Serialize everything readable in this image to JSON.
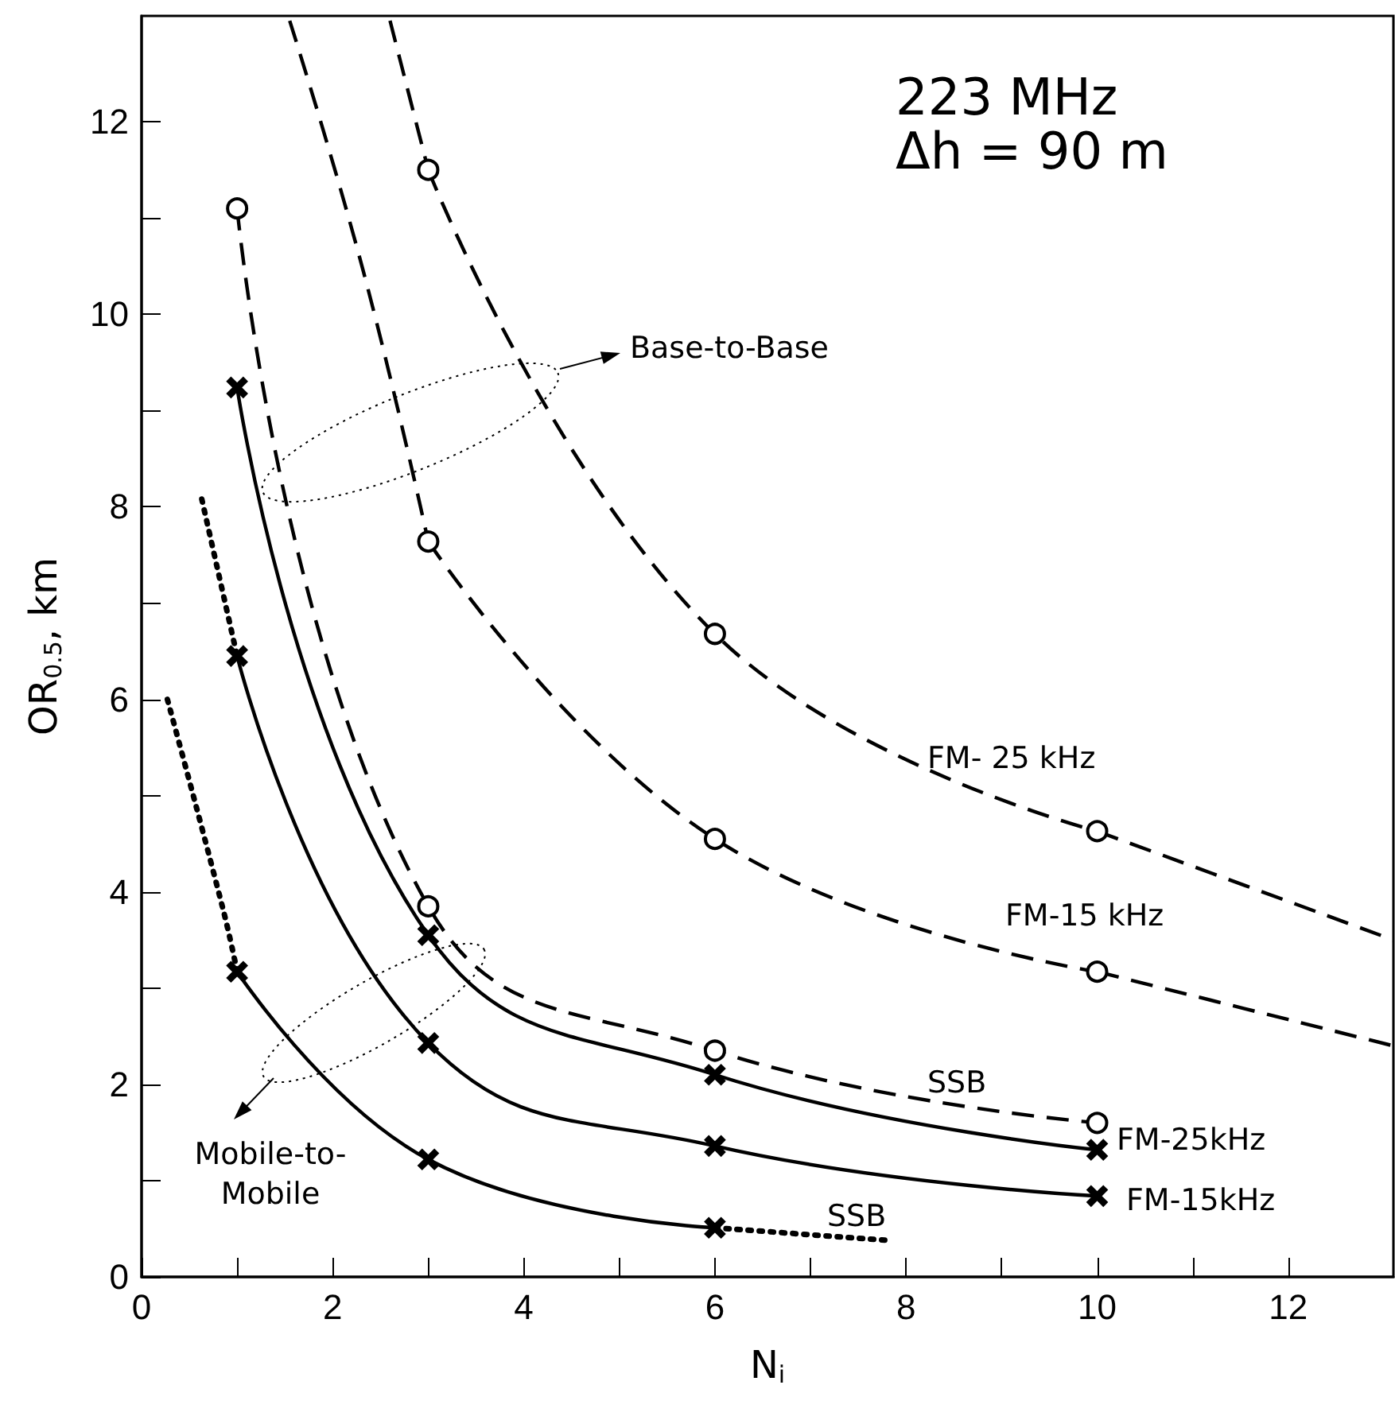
{
  "chart_data": {
    "type": "line",
    "title": "223 MHz",
    "subtitle": "Δh = 90 m",
    "xlabel": "N$_{i}$",
    "ylabel": "OR$_{0.5}$, km",
    "xlim": [
      0,
      13.1
    ],
    "ylim": [
      0,
      13.1
    ],
    "xticks": [
      0,
      {
        "value": 1,
        "label": null
      },
      2,
      {
        "value": 3,
        "label": null
      },
      4,
      {
        "value": 5,
        "label": null
      },
      6,
      {
        "value": 7,
        "label": null
      },
      8,
      {
        "value": 9,
        "label": null
      },
      10,
      {
        "value": 11,
        "label": null
      },
      12
    ],
    "yticks": [
      0,
      {
        "value": 1,
        "label": null
      },
      2,
      {
        "value": 3,
        "label": null
      },
      4,
      {
        "value": 5,
        "label": null
      },
      6,
      {
        "value": 7,
        "label": null
      },
      8,
      {
        "value": 9,
        "label": null
      },
      10,
      {
        "value": 11,
        "label": null
      },
      12
    ],
    "grid": false,
    "series": [
      {
        "color": "#000000",
        "x": [
          3,
          6,
          10
        ],
        "values": [
          11.5,
          6.68,
          4.63
        ],
        "marker": "circle",
        "line_style": "dashed"
      },
      {
        "color": "#000000",
        "x": [
          2.6,
          3
        ],
        "values": [
          13.05,
          11.5
        ],
        "marker": "none",
        "line_style": "dashed"
      },
      {
        "color": "#000000",
        "x": [
          10,
          13.1
        ],
        "values": [
          4.63,
          3.5
        ],
        "marker": "none",
        "line_style": "dashed"
      },
      {
        "color": "#000000",
        "x": [
          3,
          6,
          10
        ],
        "values": [
          7.64,
          4.55,
          3.17
        ],
        "marker": "circle",
        "line_style": "dashed"
      },
      {
        "color": "#000000",
        "x": [
          1.55,
          2.32,
          3
        ],
        "values": [
          13.05,
          10.45,
          7.64
        ],
        "marker": "none",
        "line_style": "dashed"
      },
      {
        "color": "#000000",
        "x": [
          10,
          13.1
        ],
        "values": [
          3.17,
          2.4
        ],
        "marker": "none",
        "line_style": "dashed"
      },
      {
        "color": "#000000",
        "x": [
          1,
          3,
          6,
          10
        ],
        "values": [
          11.1,
          3.85,
          2.35,
          1.6
        ],
        "marker": "circle",
        "line_style": "dashed"
      },
      {
        "color": "#000000",
        "x": [
          1,
          3,
          6,
          10
        ],
        "values": [
          9.24,
          3.55,
          2.1,
          1.32
        ],
        "marker": "cross",
        "line_style": "solid"
      },
      {
        "color": "#000000",
        "x": [
          1,
          3,
          6,
          10
        ],
        "values": [
          6.45,
          2.43,
          1.36,
          0.84
        ],
        "marker": "cross",
        "line_style": "solid"
      },
      {
        "color": "#000000",
        "x": [
          0.63,
          1
        ],
        "values": [
          8.08,
          6.45
        ],
        "marker": "none",
        "line_style": "dotted"
      },
      {
        "color": "#000000",
        "x": [
          1,
          3,
          6
        ],
        "values": [
          3.17,
          1.22,
          0.51
        ],
        "marker": "cross",
        "line_style": "solid"
      },
      {
        "color": "#000000",
        "x": [
          0.27,
          0.85,
          1
        ],
        "values": [
          6.0,
          3.83,
          3.17
        ],
        "marker": "none",
        "line_style": "dotted"
      },
      {
        "color": "#000000",
        "x": [
          6,
          7.8
        ],
        "values": [
          0.51,
          0.38
        ],
        "marker": "none",
        "line_style": "dotted"
      }
    ],
    "annotations": [
      "Base-to-Base",
      "Mobile-to-\nMobile",
      "FM- 25 kHz",
      "FM-15 kHz",
      "SSB",
      "FM-25kHz",
      "FM-15kHz",
      "SSB"
    ]
  }
}
